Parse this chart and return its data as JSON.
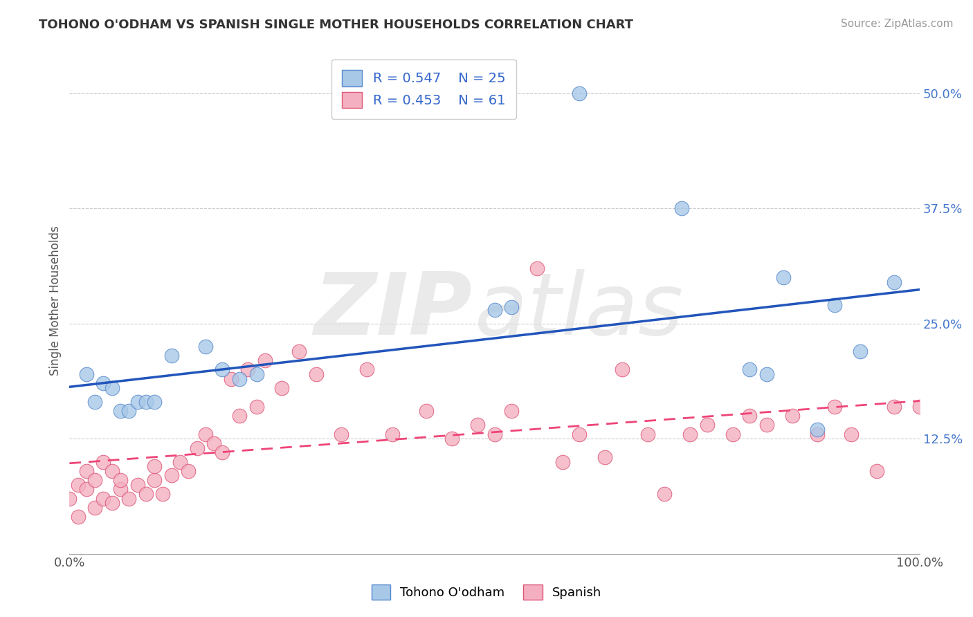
{
  "title": "TOHONO O'ODHAM VS SPANISH SINGLE MOTHER HOUSEHOLDS CORRELATION CHART",
  "source": "Source: ZipAtlas.com",
  "ylabel": "Single Mother Households",
  "xlim": [
    0,
    1
  ],
  "ylim": [
    0,
    0.55
  ],
  "x_ticks": [
    0,
    0.125,
    0.25,
    0.375,
    0.5,
    0.625,
    0.75,
    0.875,
    1.0
  ],
  "x_tick_labels": [
    "0.0%",
    "",
    "",
    "",
    "",
    "",
    "",
    "",
    "100.0%"
  ],
  "y_ticks": [
    0.125,
    0.25,
    0.375,
    0.5
  ],
  "y_tick_labels": [
    "12.5%",
    "25.0%",
    "37.5%",
    "50.0%"
  ],
  "grid_color": "#cccccc",
  "background_color": "#ffffff",
  "tohono_color": "#a8c8e8",
  "spanish_color": "#f4b0c0",
  "tohono_edge_color": "#5588cc",
  "spanish_edge_color": "#dd5577",
  "tohono_line_color": "#2255bb",
  "spanish_line_color": "#ee4477",
  "legend_r1": "R = 0.547",
  "legend_n1": "N = 25",
  "legend_r2": "R = 0.453",
  "legend_n2": "N = 61",
  "tohono_x": [
    0.02,
    0.03,
    0.04,
    0.05,
    0.06,
    0.07,
    0.08,
    0.09,
    0.1,
    0.12,
    0.16,
    0.18,
    0.2,
    0.22,
    0.5,
    0.52,
    0.6,
    0.72,
    0.8,
    0.82,
    0.84,
    0.88,
    0.9,
    0.93,
    0.97
  ],
  "tohono_y": [
    0.195,
    0.165,
    0.185,
    0.18,
    0.155,
    0.155,
    0.165,
    0.165,
    0.165,
    0.215,
    0.225,
    0.2,
    0.19,
    0.195,
    0.265,
    0.268,
    0.5,
    0.375,
    0.2,
    0.195,
    0.3,
    0.135,
    0.27,
    0.22,
    0.295
  ],
  "spanish_x": [
    0.0,
    0.01,
    0.01,
    0.02,
    0.02,
    0.03,
    0.03,
    0.04,
    0.04,
    0.05,
    0.05,
    0.06,
    0.06,
    0.07,
    0.08,
    0.09,
    0.1,
    0.1,
    0.11,
    0.12,
    0.13,
    0.14,
    0.15,
    0.16,
    0.17,
    0.18,
    0.19,
    0.2,
    0.21,
    0.22,
    0.23,
    0.25,
    0.27,
    0.29,
    0.32,
    0.35,
    0.38,
    0.42,
    0.45,
    0.48,
    0.5,
    0.52,
    0.55,
    0.58,
    0.6,
    0.63,
    0.65,
    0.68,
    0.7,
    0.73,
    0.75,
    0.78,
    0.8,
    0.82,
    0.85,
    0.88,
    0.9,
    0.92,
    0.95,
    0.97,
    1.0
  ],
  "spanish_y": [
    0.06,
    0.04,
    0.075,
    0.07,
    0.09,
    0.05,
    0.08,
    0.06,
    0.1,
    0.055,
    0.09,
    0.07,
    0.08,
    0.06,
    0.075,
    0.065,
    0.08,
    0.095,
    0.065,
    0.085,
    0.1,
    0.09,
    0.115,
    0.13,
    0.12,
    0.11,
    0.19,
    0.15,
    0.2,
    0.16,
    0.21,
    0.18,
    0.22,
    0.195,
    0.13,
    0.2,
    0.13,
    0.155,
    0.125,
    0.14,
    0.13,
    0.155,
    0.31,
    0.1,
    0.13,
    0.105,
    0.2,
    0.13,
    0.065,
    0.13,
    0.14,
    0.13,
    0.15,
    0.14,
    0.15,
    0.13,
    0.16,
    0.13,
    0.09,
    0.16,
    0.16
  ]
}
